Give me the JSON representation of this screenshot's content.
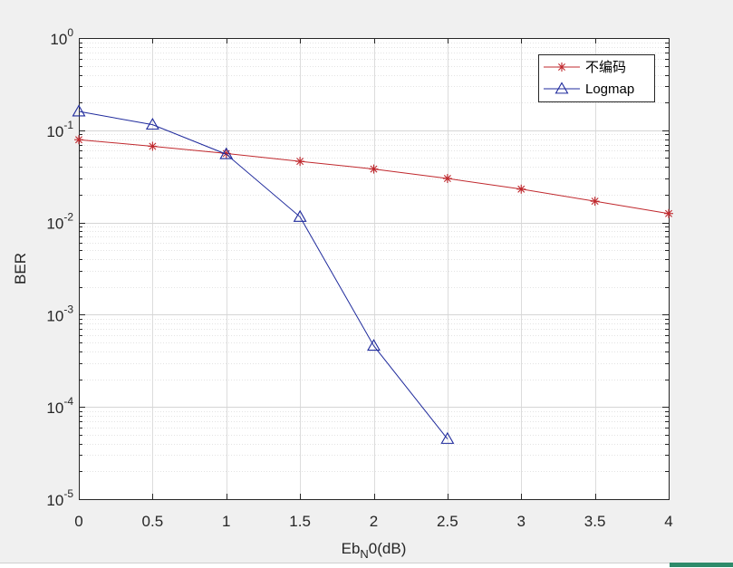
{
  "chart_data": {
    "type": "line",
    "title": "",
    "xlabel": "Eb_N0(dB)",
    "xlabel_main": "Eb",
    "xlabel_sub": "N",
    "xlabel_tail": "0(dB)",
    "ylabel": "BER",
    "xscale": "linear",
    "yscale": "log",
    "xlim": [
      0,
      4
    ],
    "ylim": [
      1e-05,
      1
    ],
    "grid": true,
    "minor_grid": true,
    "legend_position": "top-right",
    "x_ticks": [
      "0",
      "0.5",
      "1",
      "1.5",
      "2",
      "2.5",
      "3",
      "3.5",
      "4"
    ],
    "y_ticks": [
      {
        "base": "10",
        "exp": "0"
      },
      {
        "base": "10",
        "exp": "-1"
      },
      {
        "base": "10",
        "exp": "-2"
      },
      {
        "base": "10",
        "exp": "-3"
      },
      {
        "base": "10",
        "exp": "-4"
      },
      {
        "base": "10",
        "exp": "-5"
      }
    ],
    "series": [
      {
        "name": "不编码",
        "color": "#c0282d",
        "marker": "asterisk",
        "x": [
          0,
          0.5,
          1,
          1.5,
          2,
          2.5,
          3,
          3.5,
          4
        ],
        "y": [
          0.079,
          0.067,
          0.056,
          0.046,
          0.038,
          0.03,
          0.023,
          0.017,
          0.0125
        ]
      },
      {
        "name": "Logmap",
        "color": "#1f2a9c",
        "marker": "triangle",
        "x": [
          0,
          0.5,
          1,
          1.5,
          2,
          2.5
        ],
        "y": [
          0.16,
          0.115,
          0.055,
          0.0115,
          0.00046,
          4.5e-05
        ]
      }
    ]
  }
}
